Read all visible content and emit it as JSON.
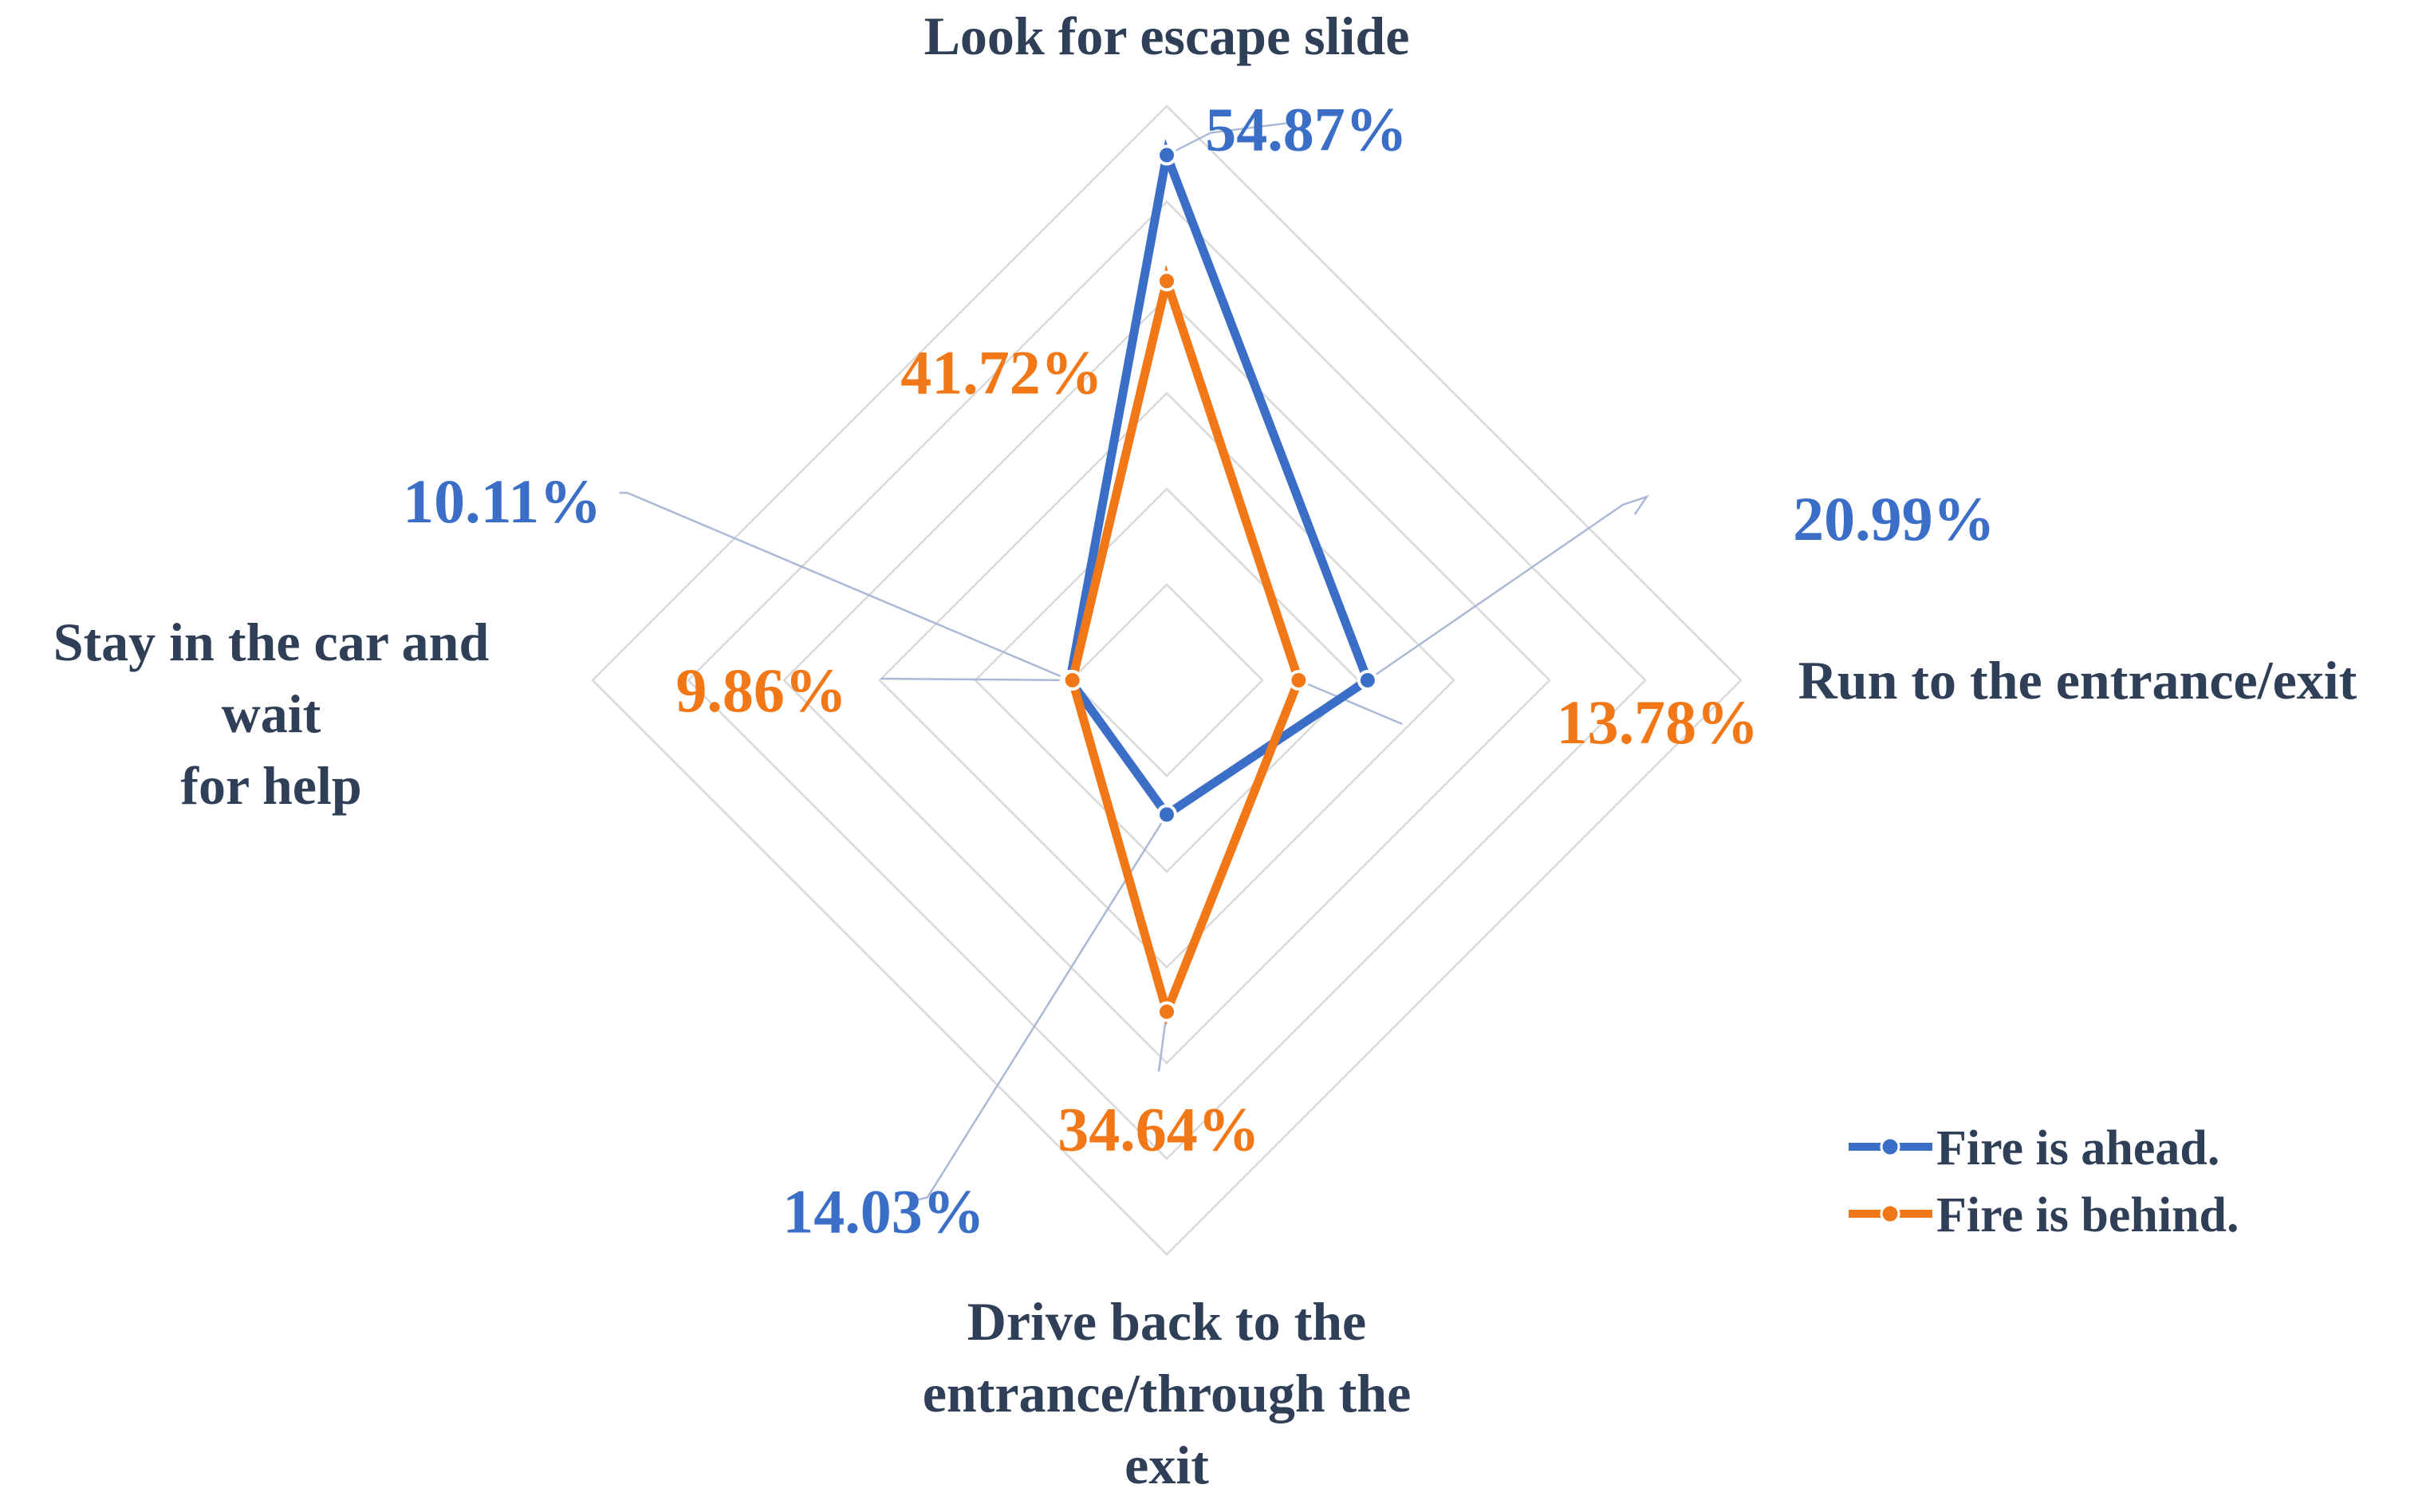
{
  "chart_data": {
    "type": "radar",
    "title": "",
    "axes": [
      [
        "Look for escape slide"
      ],
      [
        "Run to the entrance/exit"
      ],
      [
        "Drive back to the",
        "entrance/through the",
        "exit"
      ],
      [
        "Stay in the car and",
        "wait",
        "for help"
      ]
    ],
    "series": [
      {
        "name": "Fire is ahead.",
        "color": "#3b6fc7",
        "values": [
          54.87,
          20.99,
          14.03,
          10.11
        ],
        "labels": [
          "54.87%",
          "20.99%",
          "14.03%",
          "10.11%"
        ]
      },
      {
        "name": "Fire is behind.",
        "color": "#f27716",
        "values": [
          41.72,
          13.78,
          34.64,
          9.86
        ],
        "labels": [
          "41.72%",
          "13.78%",
          "34.64%",
          "9.86%"
        ]
      }
    ],
    "scale": {
      "min": 0,
      "max": 60,
      "step": 10
    },
    "grid": true,
    "legend_position": "bottom-right",
    "axis_label_color": "#2f3f57",
    "grid_color": "#d9d9d9",
    "leader_line_color": "#a9b9d6"
  }
}
